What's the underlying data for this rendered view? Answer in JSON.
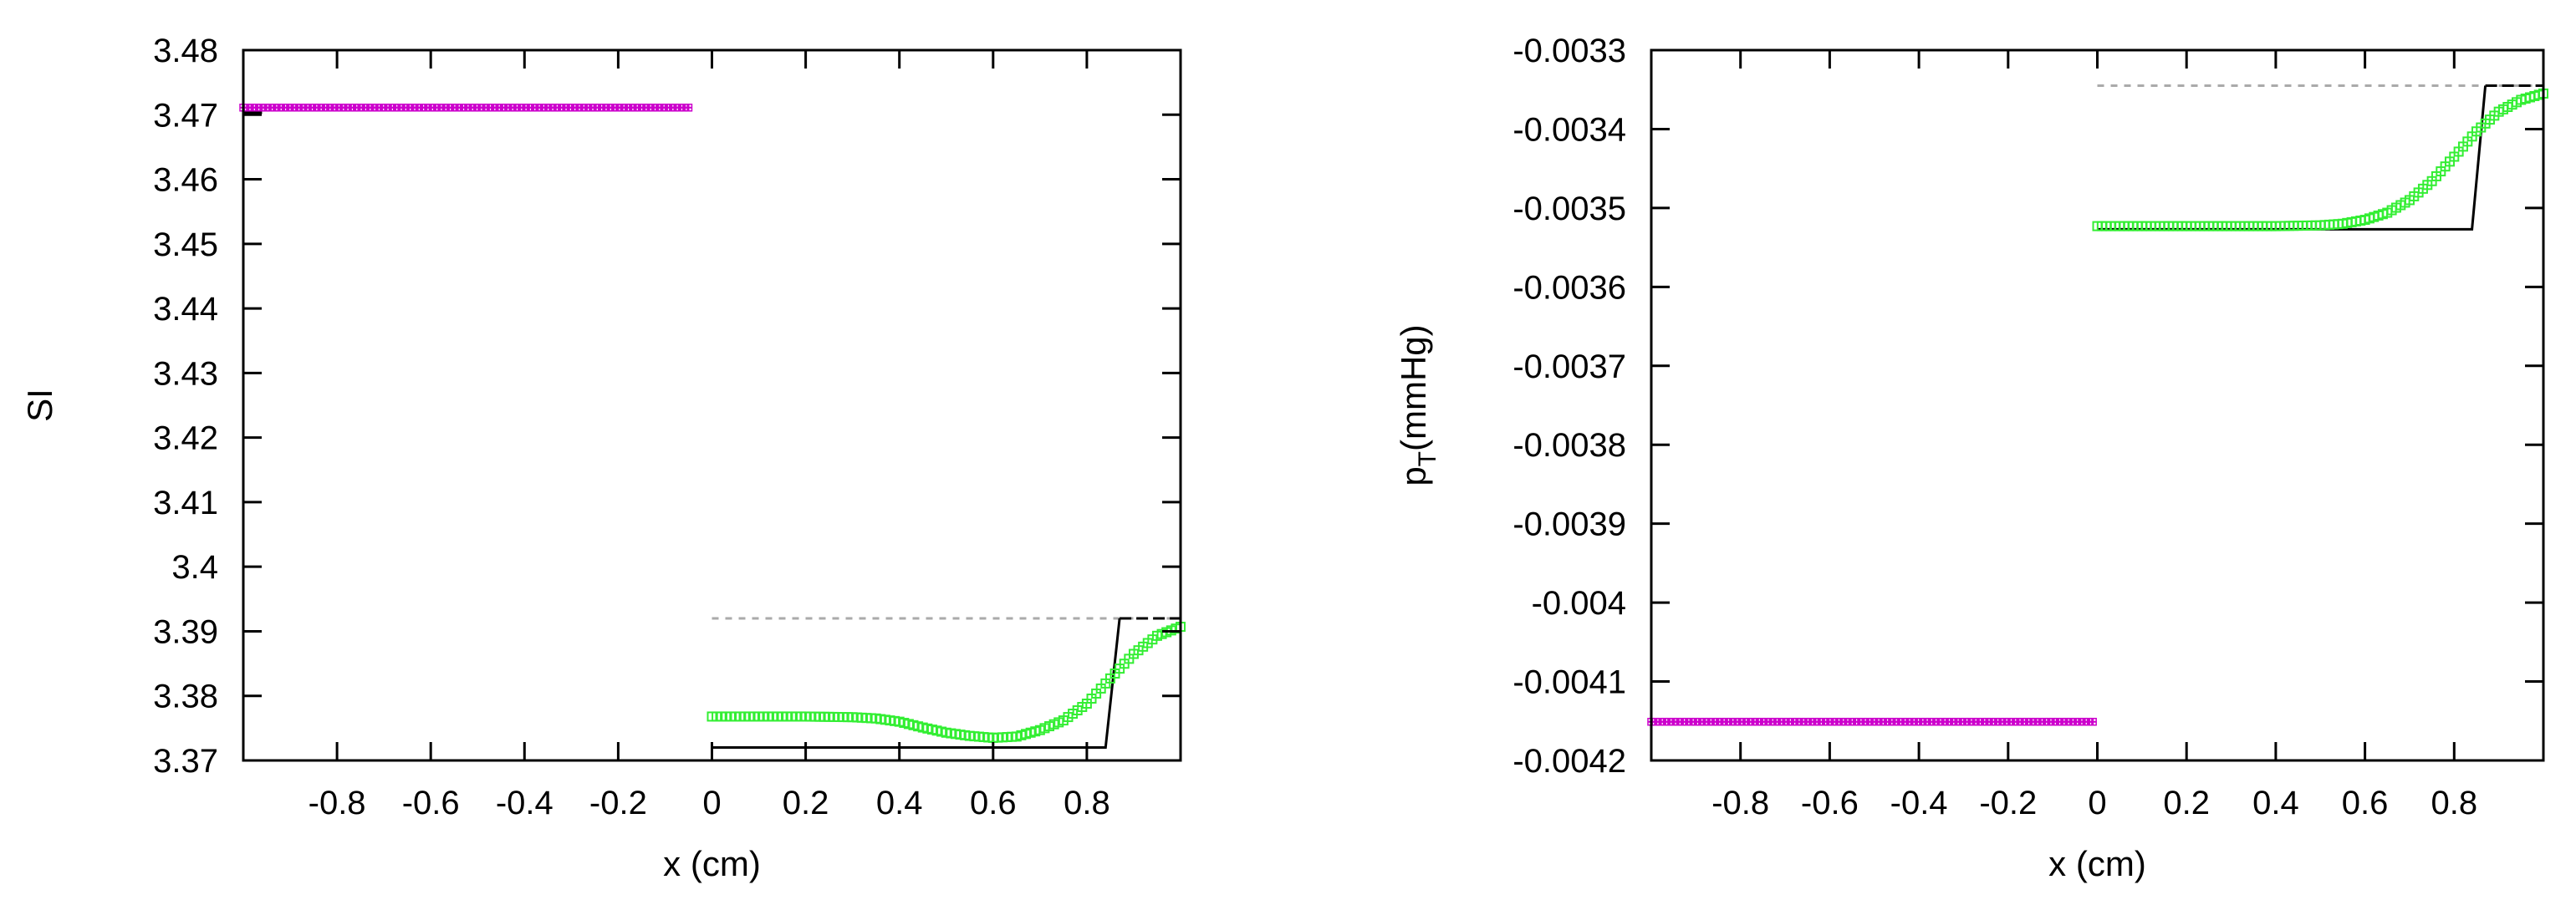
{
  "chart_data": [
    {
      "type": "line",
      "xlabel": "x (cm)",
      "ylabel": "SI",
      "xlim": [
        -1,
        1
      ],
      "ylim": [
        3.37,
        3.48
      ],
      "xticks": [
        -0.8,
        -0.6,
        -0.4,
        -0.2,
        0,
        0.2,
        0.4,
        0.6,
        0.8
      ],
      "xtick_labels": [
        "-0.8",
        "-0.6",
        "-0.4",
        "-0.2",
        "0",
        "0.2",
        "0.4",
        "0.6",
        "0.8"
      ],
      "yticks": [
        3.37,
        3.38,
        3.39,
        3.4,
        3.41,
        3.42,
        3.43,
        3.44,
        3.45,
        3.46,
        3.47,
        3.48
      ],
      "ytick_labels": [
        "3.37",
        "3.38",
        "3.39",
        "3.4",
        "3.41",
        "3.42",
        "3.43",
        "3.44",
        "3.45",
        "3.46",
        "3.47",
        "3.48"
      ],
      "grid": false,
      "legend": "none",
      "series": [
        {
          "style": "magenta-markers",
          "color": "#cc00cc",
          "x": [
            -1.0,
            -0.05
          ],
          "y": [
            3.4711,
            3.4711
          ]
        },
        {
          "style": "gray-dashed",
          "color": "#aaaaaa",
          "x": [
            0.0,
            1.0
          ],
          "y": [
            3.392,
            3.392
          ]
        },
        {
          "style": "black-dashed",
          "color": "#000000",
          "x": [
            0.87,
            1.0
          ],
          "y": [
            3.392,
            3.392
          ]
        },
        {
          "style": "black-solid",
          "color": "#000000",
          "x": [
            -1.0,
            -0.96,
            null,
            0.0,
            0.84,
            0.87
          ],
          "y": [
            3.4703,
            3.4703,
            null,
            3.372,
            3.372,
            3.392
          ]
        },
        {
          "style": "green-markers",
          "color": "#33ee33",
          "x": [
            0.0,
            0.1,
            0.2,
            0.3,
            0.35,
            0.4,
            0.45,
            0.5,
            0.55,
            0.6,
            0.65,
            0.7,
            0.75,
            0.8,
            0.85,
            0.9,
            0.95,
            1.0
          ],
          "y": [
            3.3768,
            3.3768,
            3.3768,
            3.3767,
            3.3765,
            3.376,
            3.3751,
            3.3743,
            3.3738,
            3.3735,
            3.3737,
            3.3747,
            3.3762,
            3.3788,
            3.3827,
            3.3865,
            3.3893,
            3.3907
          ]
        }
      ]
    },
    {
      "type": "line",
      "xlabel": "x (cm)",
      "ylabel": "p",
      "ylabel_sub": "T",
      "ylabel_unit": "(mmHg)",
      "xlim": [
        -1,
        1
      ],
      "ylim": [
        -0.0042,
        -0.0033
      ],
      "xticks": [
        -0.8,
        -0.6,
        -0.4,
        -0.2,
        0,
        0.2,
        0.4,
        0.6,
        0.8
      ],
      "xtick_labels": [
        "-0.8",
        "-0.6",
        "-0.4",
        "-0.2",
        "0",
        "0.2",
        "0.4",
        "0.6",
        "0.8"
      ],
      "yticks": [
        -0.0042,
        -0.0041,
        -0.004,
        -0.0039,
        -0.0038,
        -0.0037,
        -0.0036,
        -0.0035,
        -0.0034,
        -0.0033
      ],
      "ytick_labels": [
        "-0.0042",
        "-0.0041",
        "-0.004",
        "-0.0039",
        "-0.0038",
        "-0.0037",
        "-0.0036",
        "-0.0035",
        "-0.0034",
        "-0.0033"
      ],
      "grid": false,
      "legend": "none",
      "series": [
        {
          "style": "magenta-markers",
          "color": "#cc00cc",
          "x": [
            -1.0,
            -0.01
          ],
          "y": [
            -0.004151,
            -0.004151
          ]
        },
        {
          "style": "gray-dashed",
          "color": "#aaaaaa",
          "x": [
            0.0,
            1.0
          ],
          "y": [
            -0.003345,
            -0.003345
          ]
        },
        {
          "style": "black-dashed",
          "color": "#000000",
          "x": [
            0.87,
            1.0
          ],
          "y": [
            -0.003345,
            -0.003345
          ]
        },
        {
          "style": "black-solid",
          "color": "#000000",
          "x": [
            0.0,
            0.84,
            0.87
          ],
          "y": [
            -0.003527,
            -0.003527,
            -0.003345
          ]
        },
        {
          "style": "green-markers",
          "color": "#33ee33",
          "x": [
            0.0,
            0.2,
            0.4,
            0.5,
            0.55,
            0.6,
            0.65,
            0.7,
            0.75,
            0.8,
            0.85,
            0.9,
            0.95,
            1.0
          ],
          "y": [
            -0.003523,
            -0.003523,
            -0.003523,
            -0.003522,
            -0.00352,
            -0.003515,
            -0.003506,
            -0.00349,
            -0.003466,
            -0.003435,
            -0.003403,
            -0.003378,
            -0.003363,
            -0.003355
          ]
        }
      ]
    }
  ]
}
